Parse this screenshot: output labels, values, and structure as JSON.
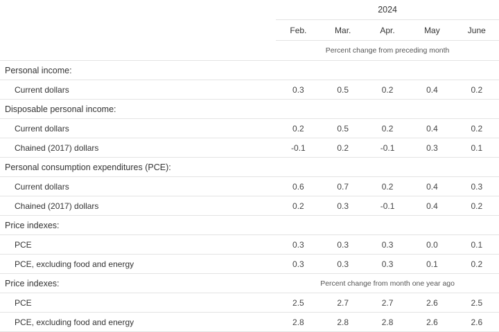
{
  "header": {
    "year": "2024",
    "months": [
      "Feb.",
      "Mar.",
      "Apr.",
      "May",
      "June"
    ],
    "unit_monthly": "Percent change from preceding month",
    "unit_yearly": "Percent change from month one year ago"
  },
  "rows": {
    "personal_income": "Personal income:",
    "pi_current": {
      "label": "Current dollars",
      "values": [
        "0.3",
        "0.5",
        "0.2",
        "0.4",
        "0.2"
      ]
    },
    "disposable_income": "Disposable personal income:",
    "dpi_current": {
      "label": "Current dollars",
      "values": [
        "0.2",
        "0.5",
        "0.2",
        "0.4",
        "0.2"
      ]
    },
    "dpi_chained": {
      "label": "Chained (2017) dollars",
      "values": [
        "-0.1",
        "0.2",
        "-0.1",
        "0.3",
        "0.1"
      ]
    },
    "pce_section": "Personal consumption expenditures (PCE):",
    "pce_current": {
      "label": "Current dollars",
      "values": [
        "0.6",
        "0.7",
        "0.2",
        "0.4",
        "0.3"
      ]
    },
    "pce_chained": {
      "label": "Chained (2017) dollars",
      "values": [
        "0.2",
        "0.3",
        "-0.1",
        "0.4",
        "0.2"
      ]
    },
    "price_indexes_monthly": "Price indexes:",
    "pi_m_pce": {
      "label": "PCE",
      "values": [
        "0.3",
        "0.3",
        "0.3",
        "0.0",
        "0.1"
      ]
    },
    "pi_m_core": {
      "label": "PCE, excluding food and energy",
      "values": [
        "0.3",
        "0.3",
        "0.3",
        "0.1",
        "0.2"
      ]
    },
    "price_indexes_yearly": "Price indexes:",
    "pi_y_pce": {
      "label": "PCE",
      "values": [
        "2.5",
        "2.7",
        "2.7",
        "2.6",
        "2.5"
      ]
    },
    "pi_y_core": {
      "label": "PCE, excluding food and energy",
      "values": [
        "2.8",
        "2.8",
        "2.8",
        "2.6",
        "2.6"
      ]
    }
  }
}
